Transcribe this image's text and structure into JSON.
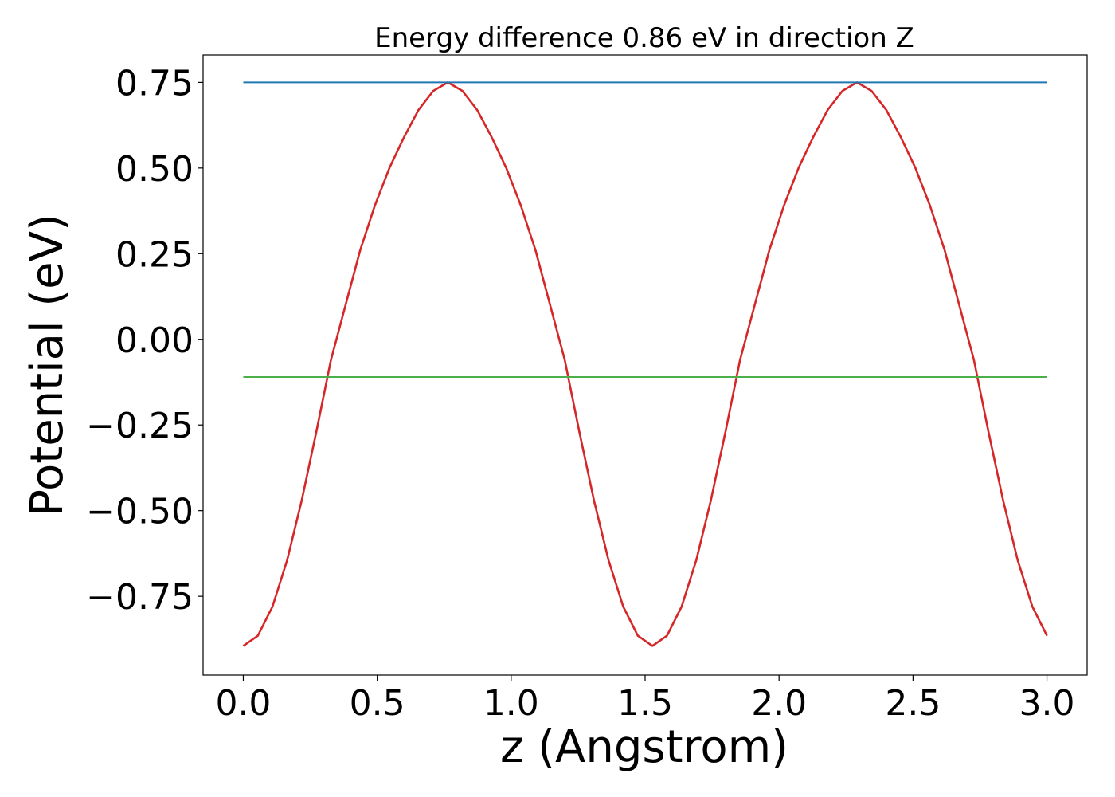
{
  "chart_data": {
    "type": "line",
    "title": "Energy difference 0.86 eV in direction Z",
    "xlabel": "z (Angstrom)",
    "ylabel": "Potential (eV)",
    "xlim": [
      -0.15,
      3.15
    ],
    "ylim": [
      -0.98,
      0.83
    ],
    "xticks": [
      0.0,
      0.5,
      1.0,
      1.5,
      2.0,
      2.5,
      3.0
    ],
    "xtick_labels": [
      "0.0",
      "0.5",
      "1.0",
      "1.5",
      "2.0",
      "2.5",
      "3.0"
    ],
    "yticks": [
      -0.75,
      -0.5,
      -0.25,
      0.0,
      0.25,
      0.5,
      0.75
    ],
    "ytick_labels": [
      "−0.75",
      "−0.50",
      "−0.25",
      "0.00",
      "0.25",
      "0.50",
      "0.75"
    ],
    "grid": false,
    "series": [
      {
        "color": "#d62728",
        "x": [
          0.0,
          0.0545,
          0.1091,
          0.1636,
          0.2182,
          0.2727,
          0.3273,
          0.3818,
          0.4364,
          0.4909,
          0.5455,
          0.6,
          0.6545,
          0.7091,
          0.7636,
          0.8182,
          0.8727,
          0.9273,
          0.9818,
          1.0364,
          1.0909,
          1.1455,
          1.2,
          1.2545,
          1.3091,
          1.3636,
          1.4182,
          1.4727,
          1.5273,
          1.5818,
          1.6364,
          1.6909,
          1.7455,
          1.8,
          1.8545,
          1.9091,
          1.9636,
          2.0182,
          2.0727,
          2.1273,
          2.1818,
          2.2364,
          2.2909,
          2.3455,
          2.4,
          2.4545,
          2.5091,
          2.5636,
          2.6182,
          2.6727,
          2.7273,
          2.7818,
          2.8364,
          2.8909,
          2.9455,
          3.0
        ],
        "y": [
          -0.895,
          -0.865,
          -0.78,
          -0.645,
          -0.47,
          -0.27,
          -0.06,
          0.1,
          0.26,
          0.39,
          0.5,
          0.59,
          0.67,
          0.725,
          0.75,
          0.725,
          0.67,
          0.59,
          0.5,
          0.39,
          0.26,
          0.1,
          -0.06,
          -0.27,
          -0.47,
          -0.645,
          -0.78,
          -0.865,
          -0.895,
          -0.865,
          -0.78,
          -0.645,
          -0.47,
          -0.27,
          -0.06,
          0.1,
          0.26,
          0.39,
          0.5,
          0.59,
          0.67,
          0.725,
          0.75,
          0.725,
          0.67,
          0.59,
          0.5,
          0.39,
          0.26,
          0.1,
          -0.06,
          -0.27,
          -0.47,
          -0.645,
          -0.78,
          -0.865
        ]
      },
      {
        "color": "#1f77b4",
        "x": [
          0.0,
          3.0
        ],
        "y": [
          0.75,
          0.75
        ]
      },
      {
        "color": "#4daf4a",
        "x": [
          0.0,
          3.0
        ],
        "y": [
          -0.11,
          -0.11
        ]
      }
    ]
  }
}
